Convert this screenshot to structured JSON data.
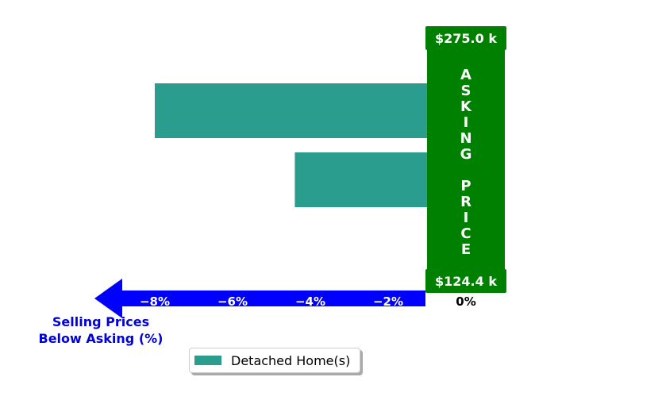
{
  "chart_data": {
    "type": "bar",
    "orientation": "horizontal",
    "categories": [
      "",
      "",
      ""
    ],
    "series": [
      {
        "name": "Detached Home(s)",
        "values": [
          -8.0,
          -4.4,
          0.2
        ],
        "color": "#2a9d8f"
      }
    ],
    "xlim": [
      -10.0,
      1.2
    ],
    "xticks": [
      -8,
      -6,
      -4,
      -2
    ],
    "xtick_labels": [
      "−8%",
      "−6%",
      "−4%",
      "−2%"
    ],
    "zero_label": "0%",
    "xlabel": "Selling Prices\nBelow Asking (%)",
    "xlabel_lines": [
      "Selling Prices",
      "Below Asking (%)"
    ],
    "asking_band": {
      "text": "ASKING PRICE",
      "letters": [
        "A",
        "S",
        "K",
        "I",
        "N",
        "G",
        "",
        "P",
        "R",
        "I",
        "C",
        "E"
      ],
      "top_label": "$275.0 k",
      "bottom_label": "$124.4 k",
      "color": "#008000"
    },
    "arrow_color": "#0000ff",
    "legend": {
      "label": "Detached Home(s)",
      "placement": "lower-center"
    },
    "grid": false
  }
}
